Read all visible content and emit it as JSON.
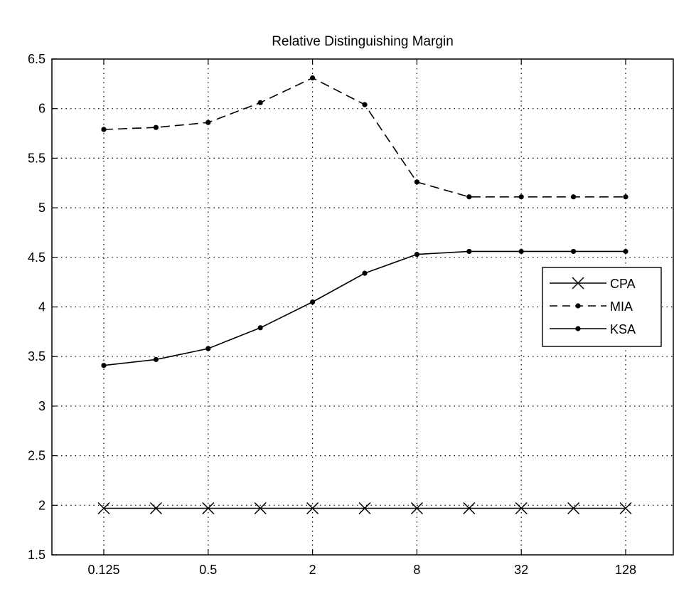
{
  "chart_data": {
    "type": "line",
    "title": "Relative Distinguishing Margin",
    "xlabel": "",
    "ylabel": "",
    "x": [
      0.125,
      0.25,
      0.5,
      1,
      2,
      4,
      8,
      16,
      32,
      64,
      128
    ],
    "x_scale": "log2",
    "xticks": [
      0.125,
      0.5,
      2,
      8,
      32,
      128
    ],
    "xtick_labels": [
      "0.125",
      "0.5",
      "2",
      "8",
      "32",
      "128"
    ],
    "ylim": [
      1.5,
      6.5
    ],
    "yticks": [
      1.5,
      2,
      2.5,
      3,
      3.5,
      4,
      4.5,
      5,
      5.5,
      6,
      6.5
    ],
    "ytick_labels": [
      "1.5",
      "2",
      "2.5",
      "3",
      "3.5",
      "4",
      "4.5",
      "5",
      "5.5",
      "6",
      "6.5"
    ],
    "grid": true,
    "legend_position": "right",
    "series": [
      {
        "name": "CPA",
        "line_style": "solid",
        "marker": "x",
        "color": "#000000",
        "values": [
          1.97,
          1.97,
          1.97,
          1.97,
          1.97,
          1.97,
          1.97,
          1.97,
          1.97,
          1.97,
          1.97
        ]
      },
      {
        "name": "MIA",
        "line_style": "dashed",
        "marker": "dot",
        "color": "#000000",
        "values": [
          5.79,
          5.81,
          5.86,
          6.06,
          6.31,
          6.04,
          5.26,
          5.11,
          5.11,
          5.11,
          5.11
        ]
      },
      {
        "name": "KSA",
        "line_style": "solid",
        "marker": "dot",
        "color": "#000000",
        "values": [
          3.41,
          3.47,
          3.58,
          3.79,
          4.05,
          4.34,
          4.53,
          4.56,
          4.56,
          4.56,
          4.56
        ]
      }
    ]
  }
}
